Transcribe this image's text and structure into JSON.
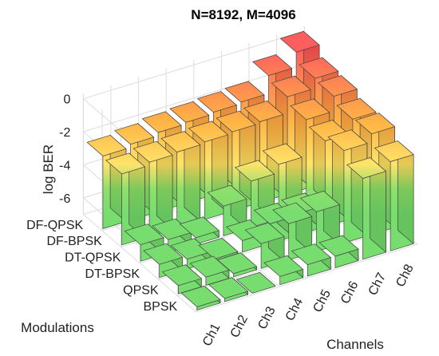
{
  "chart_data": {
    "type": "bar3d",
    "title": "N=8192, M=4096",
    "zlabel": "log BER",
    "xlabel": "Channels",
    "ylabel": "Modulations",
    "zlim": [
      -7,
      0
    ],
    "zticks": [
      "0",
      "-2",
      "-4",
      "-6"
    ],
    "zticks_values": [
      0,
      -2,
      -4,
      -6
    ],
    "channels": [
      "Ch1",
      "Ch2",
      "Ch3",
      "Ch4",
      "Ch5",
      "Ch6",
      "Ch7",
      "Ch8"
    ],
    "modulations": [
      "BPSK",
      "QPSK",
      "DT-BPSK",
      "DT-QPSK",
      "DF-BPSK",
      "DF-QPSK"
    ],
    "values": [
      [
        -6.8,
        -6.8,
        -7.0,
        -6.5,
        -6.3,
        -6.3,
        -2.1,
        -1.6
      ],
      [
        -6.5,
        -6.5,
        -6.8,
        -5.5,
        -4.8,
        -4.6,
        -1.4,
        -0.9
      ],
      [
        -6.2,
        -6.4,
        -6.9,
        -6.3,
        -5.8,
        -5.7,
        -1.8,
        -1.0
      ],
      [
        -6.0,
        -6.2,
        -6.6,
        -5.2,
        -4.2,
        -3.7,
        -1.5,
        -0.6
      ],
      [
        -2.7,
        -2.5,
        -2.4,
        -2.3,
        -2.2,
        -2.1,
        -1.1,
        -0.5
      ],
      [
        -2.6,
        -2.4,
        -2.2,
        -2.1,
        -2.0,
        -1.9,
        -0.8,
        0.1
      ]
    ],
    "colormap": [
      "#77dd6f",
      "#ffe36a",
      "#ff5e5e"
    ],
    "grid": true,
    "legend": "none"
  }
}
